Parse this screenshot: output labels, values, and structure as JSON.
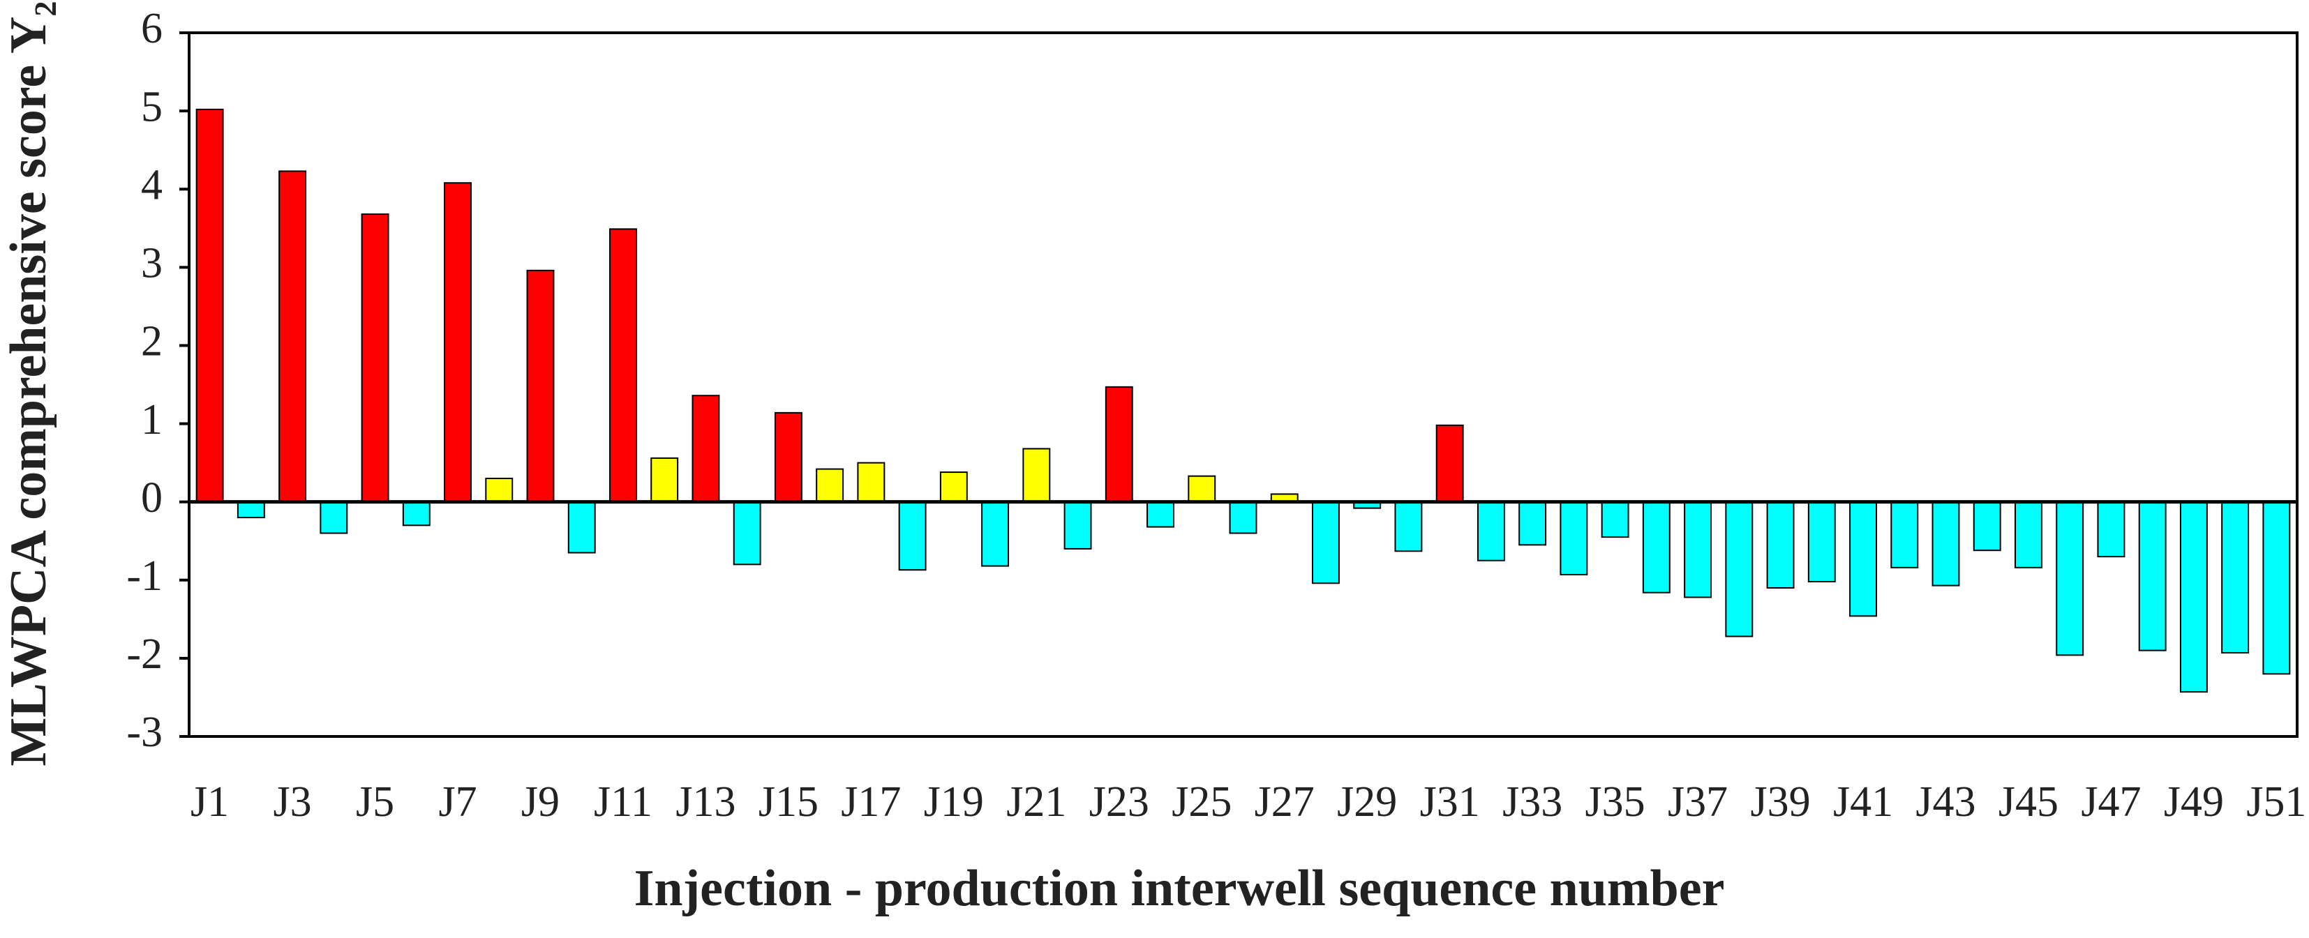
{
  "chart_data": {
    "type": "bar",
    "x_label": "Injection - production interwell sequence number",
    "y_label": "MLWPCA comprehensive score Y₂",
    "categories": [
      "J1",
      null,
      "J3",
      null,
      "J5",
      null,
      "J7",
      null,
      "J9",
      null,
      "J11",
      null,
      "J13",
      null,
      "J15",
      null,
      "J17",
      null,
      "J19",
      null,
      "J21",
      null,
      "J23",
      null,
      "J25",
      null,
      "J27",
      null,
      "J29",
      null,
      "J31",
      null,
      "J33",
      null,
      "J35",
      null,
      "J37",
      null,
      "J39",
      null,
      "J41",
      null,
      "J43",
      null,
      "J45",
      null,
      "J47",
      null,
      "J49",
      null,
      "J51"
    ],
    "values": [
      5.02,
      -0.2,
      4.23,
      -0.4,
      3.68,
      -0.3,
      4.08,
      0.3,
      2.96,
      -0.65,
      3.49,
      0.56,
      1.36,
      -0.8,
      1.14,
      0.42,
      0.5,
      -0.87,
      0.38,
      -0.82,
      0.68,
      -0.6,
      1.47,
      -0.32,
      0.33,
      -0.4,
      0.1,
      -1.04,
      -0.08,
      -0.63,
      0.98,
      -0.75,
      -0.55,
      -0.93,
      -0.45,
      -1.16,
      -1.22,
      -1.72,
      -1.1,
      -1.02,
      -1.46,
      -0.84,
      -1.07,
      -0.62,
      -0.84,
      -1.96,
      -0.7,
      -1.9,
      -2.43,
      -1.93,
      -2.2
    ],
    "colors": [
      "#ff0000",
      "#00ffff",
      "#ff0000",
      "#00ffff",
      "#ff0000",
      "#00ffff",
      "#ff0000",
      "#ffff00",
      "#ff0000",
      "#00ffff",
      "#ff0000",
      "#ffff00",
      "#ff0000",
      "#00ffff",
      "#ff0000",
      "#ffff00",
      "#ffff00",
      "#00ffff",
      "#ffff00",
      "#00ffff",
      "#ffff00",
      "#00ffff",
      "#ff0000",
      "#00ffff",
      "#ffff00",
      "#00ffff",
      "#ffff00",
      "#00ffff",
      "#00ffff",
      "#00ffff",
      "#ff0000",
      "#00ffff",
      "#00ffff",
      "#00ffff",
      "#00ffff",
      "#00ffff",
      "#00ffff",
      "#00ffff",
      "#00ffff",
      "#00ffff",
      "#00ffff",
      "#00ffff",
      "#00ffff",
      "#00ffff",
      "#00ffff",
      "#00ffff",
      "#00ffff",
      "#00ffff",
      "#00ffff",
      "#00ffff",
      "#00ffff"
    ],
    "ylim": [
      -3,
      6
    ],
    "yticks": [
      -3,
      -2,
      -1,
      0,
      1,
      2,
      3,
      4,
      5,
      6
    ],
    "grid": false
  }
}
